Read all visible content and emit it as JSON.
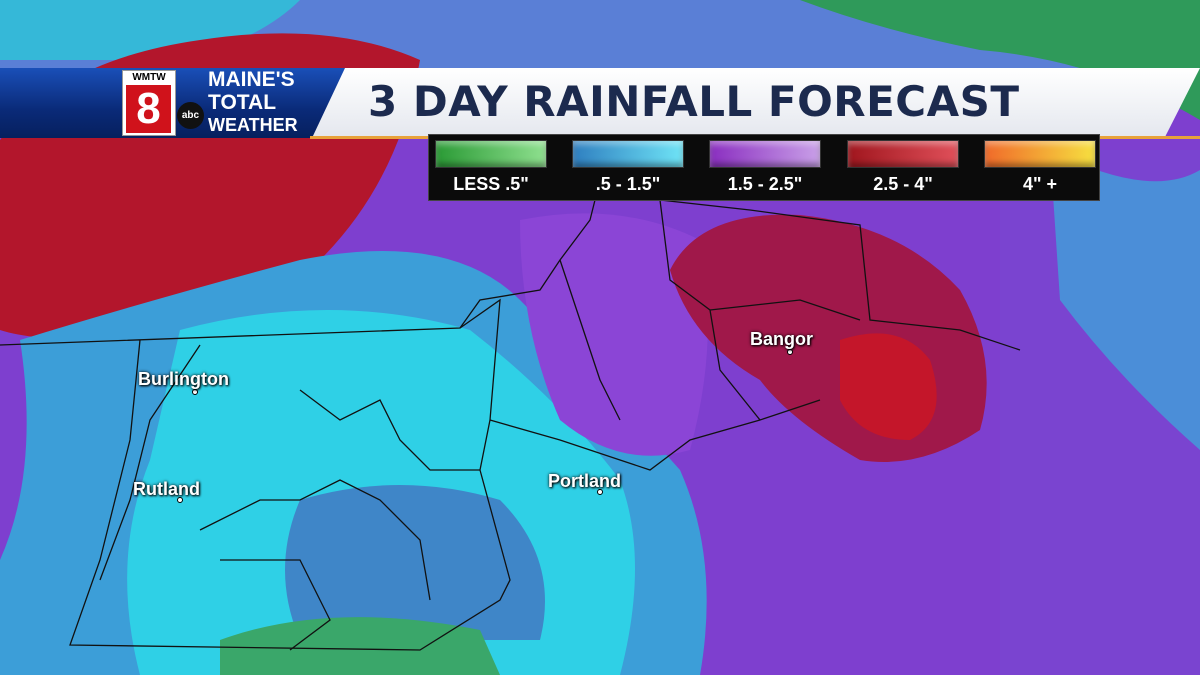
{
  "header": {
    "logo": {
      "station": "WMTW",
      "channel": "8",
      "network": "abc",
      "brand_lines": [
        "MAINE'S",
        "TOTAL",
        "WEATHER"
      ]
    },
    "title": "3 DAY RAINFALL FORECAST"
  },
  "legend": [
    {
      "label": "LESS .5\"",
      "color": "#3cb544"
    },
    {
      "label": ".5 - 1.5\"",
      "color": "#3aa8d8"
    },
    {
      "label": "1.5 - 2.5\"",
      "color": "#9a45c8"
    },
    {
      "label": "2.5 - 4\"",
      "color": "#c0202a"
    },
    {
      "label": "4\" +",
      "color": "#f28a2a"
    }
  ],
  "cities": [
    {
      "name": "Burlington"
    },
    {
      "name": "Rutland"
    },
    {
      "name": "Portland"
    },
    {
      "name": "Bangor"
    }
  ]
}
